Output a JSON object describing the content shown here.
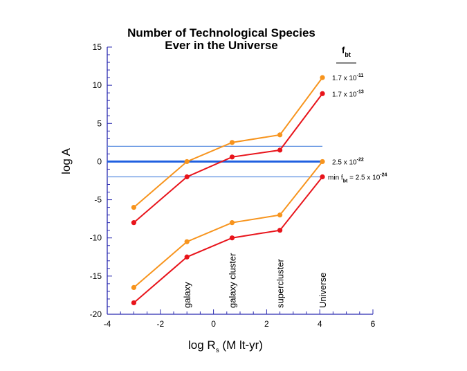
{
  "chart_data": {
    "type": "line",
    "title": [
      "Number of Technological Species",
      "Ever in the Universe"
    ],
    "xlabel": {
      "main": "log R",
      "sub": "s",
      "rest": " (M lt-yr)"
    },
    "ylabel": "log A",
    "xlim": [
      -4,
      6
    ],
    "ylim": [
      -20,
      15
    ],
    "xticks": [
      -4,
      -2,
      0,
      2,
      4,
      6
    ],
    "yticks": [
      15,
      10,
      5,
      0,
      -5,
      -10,
      -15,
      -20
    ],
    "grid": false,
    "x": [
      -3,
      -1,
      0.7,
      2.5,
      4.1
    ],
    "series": [
      {
        "color": "#f7941d",
        "values": [
          -6,
          0,
          2.5,
          3.5,
          11
        ]
      },
      {
        "color": "#e8141b",
        "values": [
          -8,
          -2,
          0.6,
          1.5,
          8.9
        ]
      },
      {
        "color": "#f7941d",
        "values": [
          -16.5,
          -10.5,
          -8,
          -7,
          0
        ]
      },
      {
        "color": "#e8141b",
        "values": [
          -18.5,
          -12.5,
          -10,
          -9,
          -2
        ]
      }
    ],
    "reference_lines": [
      {
        "y": 2,
        "color": "#5b8fe0",
        "weight": "thin"
      },
      {
        "y": 0,
        "color": "#2060e0",
        "weight": "thick"
      },
      {
        "y": -2,
        "color": "#5b8fe0",
        "weight": "thin"
      }
    ],
    "vertical_labels": [
      {
        "x": -1,
        "text": "galaxy"
      },
      {
        "x": 0.7,
        "text": "galaxy cluster"
      },
      {
        "x": 2.5,
        "text": "supercluster"
      },
      {
        "x": 4.1,
        "text": "Universe"
      }
    ],
    "annotation_header": {
      "main": "f",
      "sub": "bt"
    },
    "annotations": [
      {
        "y": 11,
        "text": "1.7 x 10",
        "exp": "-11"
      },
      {
        "y": 8.9,
        "text": "1.7 x 10",
        "exp": "-13"
      },
      {
        "y": 0,
        "text": "2.5 x 10",
        "exp": "-22"
      },
      {
        "y": -2,
        "prefix": "min f",
        "prefix_sub": "bt",
        "text": " = 2.5 x 10",
        "exp": "-24"
      }
    ],
    "axis_color": "#2a2ab0"
  }
}
